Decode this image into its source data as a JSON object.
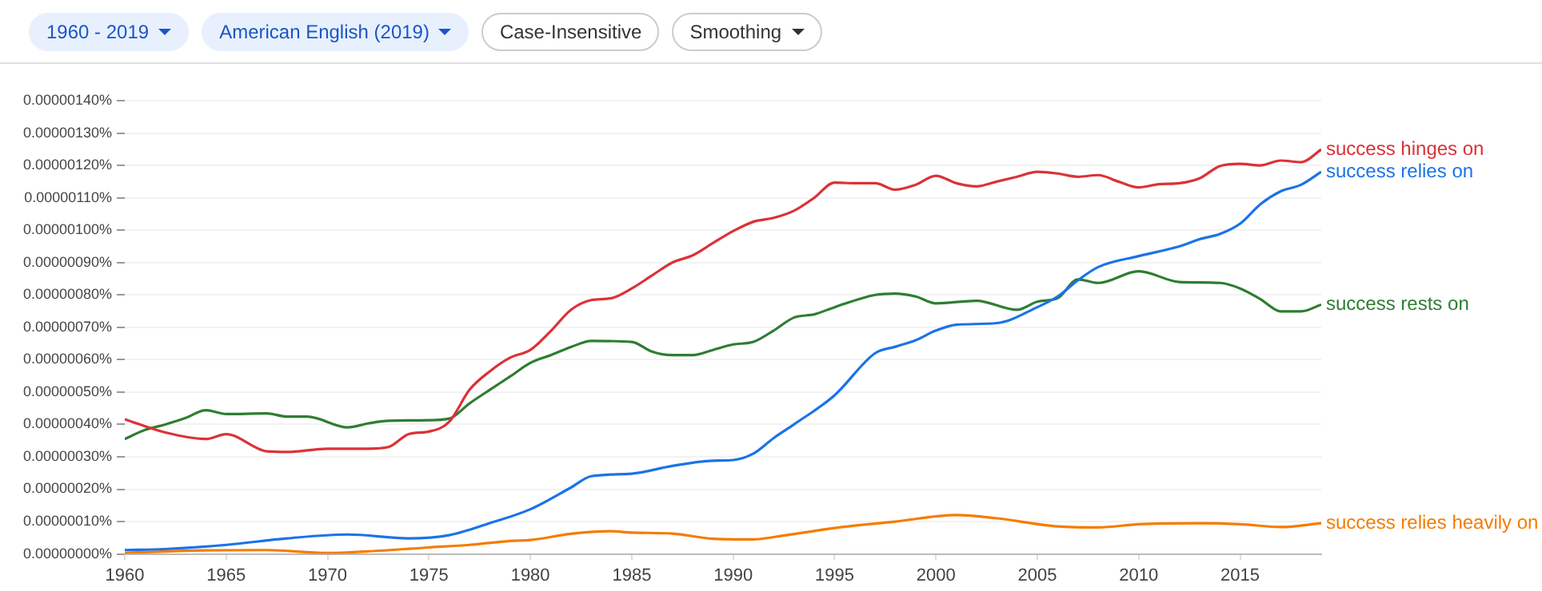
{
  "chart_data": {
    "type": "line",
    "annotations": [
      "1960 - 2019",
      "American English (2019)",
      "Case-Insensitive",
      "Smoothing"
    ],
    "xlim": [
      1960,
      2019
    ],
    "xticks": [
      1960,
      1965,
      1970,
      1975,
      1980,
      1985,
      1990,
      1995,
      2000,
      2005,
      2010,
      2015
    ],
    "ylim": [
      0,
      1.4e-06
    ],
    "yticks": [
      {
        "value": 0,
        "label": "0.00000000%"
      },
      {
        "value": 1e-07,
        "label": "0.00000010%"
      },
      {
        "value": 2e-07,
        "label": "0.00000020%"
      },
      {
        "value": 3e-07,
        "label": "0.00000030%"
      },
      {
        "value": 4e-07,
        "label": "0.00000040%"
      },
      {
        "value": 5e-07,
        "label": "0.00000050%"
      },
      {
        "value": 6e-07,
        "label": "0.00000060%"
      },
      {
        "value": 7e-07,
        "label": "0.00000070%"
      },
      {
        "value": 8e-07,
        "label": "0.00000080%"
      },
      {
        "value": 9e-07,
        "label": "0.00000090%"
      },
      {
        "value": 1e-06,
        "label": "0.00000100%"
      },
      {
        "value": 1.1e-06,
        "label": "0.00000110%"
      },
      {
        "value": 1.2e-06,
        "label": "0.00000120%"
      },
      {
        "value": 1.3e-06,
        "label": "0.00000130%"
      },
      {
        "value": 1.4e-06,
        "label": "0.00000140%"
      }
    ],
    "grid": "y",
    "legend": false,
    "marker": "none",
    "line_style": "solid",
    "series": [
      {
        "name": "success hinges on",
        "color": "#db3236",
        "x": [
          1960,
          1962,
          1964,
          1965,
          1967,
          1968,
          1970,
          1972,
          1973,
          1974,
          1975,
          1976,
          1977,
          1978,
          1979,
          1980,
          1981,
          1982,
          1983,
          1984,
          1985,
          1986,
          1987,
          1988,
          1989,
          1990,
          1991,
          1992,
          1993,
          1994,
          1995,
          1996,
          1997,
          1998,
          1999,
          2000,
          2001,
          2002,
          2003,
          2004,
          2005,
          2006,
          2007,
          2008,
          2009,
          2010,
          2011,
          2012,
          2013,
          2014,
          2015,
          2016,
          2017,
          2018,
          2019
        ],
        "values": [
          4.16e-07,
          3.75e-07,
          3.55e-07,
          3.7e-07,
          3.17e-07,
          3.15e-07,
          3.25e-07,
          3.25e-07,
          3.3e-07,
          3.7e-07,
          3.78e-07,
          4.08e-07,
          5.07e-07,
          5.64e-07,
          6.06e-07,
          6.3e-07,
          6.88e-07,
          7.54e-07,
          7.84e-07,
          7.9e-07,
          8.2e-07,
          8.6e-07,
          9e-07,
          9.22e-07,
          9.6e-07,
          9.97e-07,
          1.026e-06,
          1.038e-06,
          1.06e-06,
          1.1e-06,
          1.147e-06,
          1.145e-06,
          1.145e-06,
          1.125e-06,
          1.14e-06,
          1.168e-06,
          1.145e-06,
          1.135e-06,
          1.15e-06,
          1.165e-06,
          1.18e-06,
          1.175e-06,
          1.165e-06,
          1.17e-06,
          1.15e-06,
          1.132e-06,
          1.142e-06,
          1.145e-06,
          1.16e-06,
          1.198e-06,
          1.205e-06,
          1.2e-06,
          1.215e-06,
          1.21e-06,
          1.249e-06
        ]
      },
      {
        "name": "success relies on",
        "color": "#1a73e8",
        "x": [
          1960,
          1962,
          1965,
          1968,
          1971,
          1974,
          1976,
          1978,
          1980,
          1982,
          1983,
          1985,
          1987,
          1989,
          1990,
          1991,
          1992,
          1993,
          1995,
          1997,
          1998,
          1999,
          2000,
          2001,
          2003,
          2005,
          2006,
          2007,
          2008,
          2010,
          2012,
          2013,
          2014,
          2015,
          2016,
          2017,
          2018,
          2019
        ],
        "values": [
          1.2e-08,
          1.5e-08,
          2.8e-08,
          4.8e-08,
          6e-08,
          4.8e-08,
          5.8e-08,
          9.5e-08,
          1.38e-07,
          2.05e-07,
          2.4e-07,
          2.48e-07,
          2.72e-07,
          2.88e-07,
          2.9e-07,
          3.1e-07,
          3.58e-07,
          4e-07,
          4.9e-07,
          6.2e-07,
          6.4e-07,
          6.6e-07,
          6.9e-07,
          7.08e-07,
          7.13e-07,
          7.62e-07,
          7.95e-07,
          8.45e-07,
          8.86e-07,
          9.2e-07,
          9.5e-07,
          9.72e-07,
          9.88e-07,
          1.02e-06,
          1.08e-06,
          1.12e-06,
          1.14e-06,
          1.18e-06
        ]
      },
      {
        "name": "success rests on",
        "color": "#2e7d32",
        "x": [
          1960,
          1961,
          1962,
          1963,
          1964,
          1965,
          1967,
          1968,
          1969,
          1971,
          1972,
          1973,
          1975,
          1976,
          1977,
          1978,
          1979,
          1980,
          1981,
          1982,
          1983,
          1985,
          1986,
          1987,
          1988,
          1989,
          1990,
          1991,
          1992,
          1993,
          1994,
          1995,
          1997,
          1998,
          1999,
          2000,
          2002,
          2004,
          2005,
          2006,
          2007,
          2008,
          2010,
          2012,
          2014,
          2015,
          2016,
          2017,
          2018,
          2019
        ],
        "values": [
          3.55e-07,
          3.83e-07,
          4e-07,
          4.2e-07,
          4.44e-07,
          4.32e-07,
          4.34e-07,
          4.24e-07,
          4.24e-07,
          3.91e-07,
          4.03e-07,
          4.11e-07,
          4.13e-07,
          4.18e-07,
          4.65e-07,
          5.07e-07,
          5.48e-07,
          5.9e-07,
          6.14e-07,
          6.39e-07,
          6.58e-07,
          6.55e-07,
          6.25e-07,
          6.14e-07,
          6.14e-07,
          6.3e-07,
          6.47e-07,
          6.55e-07,
          6.9e-07,
          7.3e-07,
          7.4e-07,
          7.62e-07,
          8e-07,
          8.04e-07,
          7.95e-07,
          7.74e-07,
          7.82e-07,
          7.54e-07,
          7.79e-07,
          7.9e-07,
          8.48e-07,
          8.37e-07,
          8.73e-07,
          8.4e-07,
          8.37e-07,
          8.2e-07,
          7.87e-07,
          7.49e-07,
          7.49e-07,
          7.7e-07
        ]
      },
      {
        "name": "success relies heavily on",
        "color": "#f57c00",
        "x": [
          1960,
          1963,
          1967,
          1970,
          1972,
          1975,
          1977,
          1979,
          1980,
          1982,
          1984,
          1985,
          1987,
          1989,
          1991,
          1992,
          1995,
          1998,
          2001,
          2003,
          2006,
          2008,
          2010,
          2013,
          2015,
          2017,
          2019
        ],
        "values": [
          3e-09,
          1e-08,
          1.2e-08,
          3e-09,
          8e-09,
          2e-08,
          2.8e-08,
          4e-08,
          4.3e-08,
          6.2e-08,
          7e-08,
          6.6e-08,
          6.3e-08,
          4.7e-08,
          4.5e-08,
          5.2e-08,
          8e-08,
          1e-07,
          1.2e-07,
          1.1e-07,
          8.5e-08,
          8.2e-08,
          9.2e-08,
          9.5e-08,
          9.2e-08,
          8.3e-08,
          9.5e-08
        ]
      }
    ]
  }
}
